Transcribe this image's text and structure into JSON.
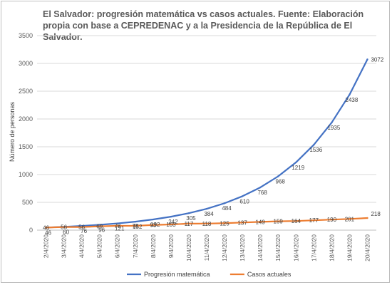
{
  "chart_data": {
    "type": "line",
    "title": "El Salvador: progresión matemática vs casos actuales. Fuente: Elaboración propia con base a CEPREDENAC y a la Presidencia de la República de El Salvador.",
    "ylabel": "Número de personas",
    "xlabel": "",
    "ylim": [
      0,
      3500
    ],
    "yticks": [
      0,
      500,
      1000,
      1500,
      2000,
      2500,
      3000,
      3500
    ],
    "grid": true,
    "legend_position": "bottom",
    "categories": [
      "2/4/2020",
      "3/4/2020",
      "4/4/2020",
      "5/4/2020",
      "6/4/2020",
      "7/4/2020",
      "8/4/2020",
      "9/4/2020",
      "10/4/2020",
      "11/4/2020",
      "12/4/2020",
      "13/4/2020",
      "14/4/2020",
      "15/4/2020",
      "16/4/2020",
      "17/4/2020",
      "18/4/2020",
      "19/4/2020",
      "20/4/2020"
    ],
    "series": [
      {
        "name": "Progresión matemática",
        "color": "#4472c4",
        "values": [
          46,
          60,
          76,
          96,
          121,
          152,
          192,
          242,
          305,
          384,
          484,
          610,
          768,
          968,
          1219,
          1536,
          1935,
          2438,
          3072
        ]
      },
      {
        "name": "Casos actuales",
        "color": "#ed7d31",
        "values": [
          46,
          56,
          56,
          69,
          78,
          78,
          93,
          103,
          117,
          118,
          125,
          137,
          149,
          159,
          164,
          177,
          190,
          201,
          218
        ]
      }
    ]
  }
}
